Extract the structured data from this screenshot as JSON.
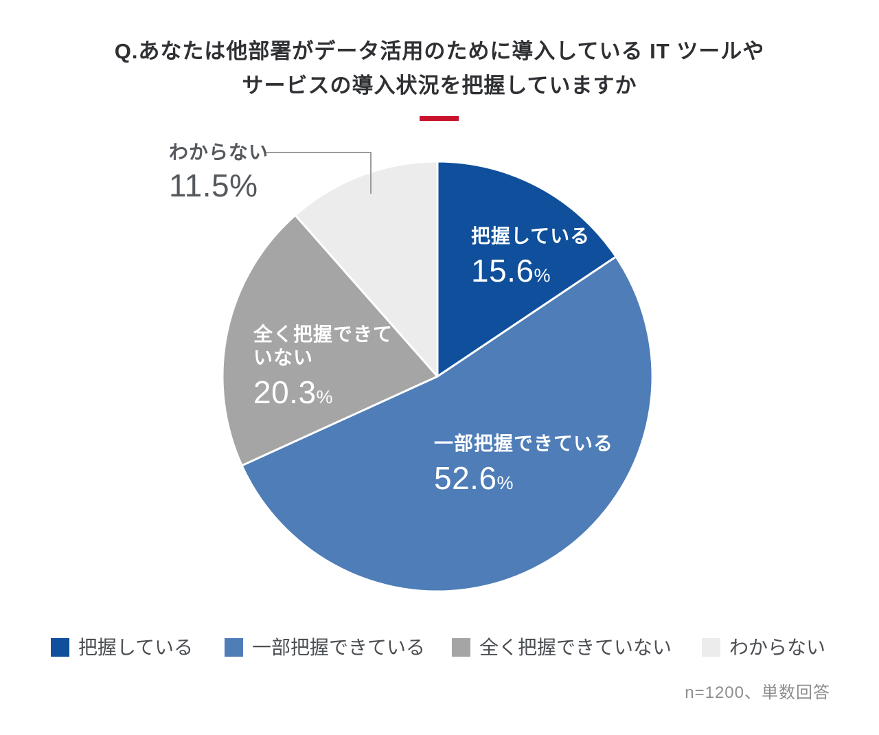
{
  "percent_sign": "%",
  "header": {
    "title_line1": "Q.あなたは他部署がデータ活用のために導入している IT ツールや",
    "title_line2": "サービスの導入状況を把握していますか",
    "accent_color": "#c9122b"
  },
  "chart_data": {
    "type": "pie",
    "title": "Q.あなたは他部署がデータ活用のために導入している IT ツールやサービスの導入状況を把握していますか",
    "start_angle_deg": 0,
    "direction": "clockwise",
    "total_percent": 100,
    "slice_separator_color": "#ffffff",
    "slices": [
      {
        "label": "把握している",
        "value": 15.6,
        "value_str": "15.6",
        "color": "#0f4f9b",
        "text_color": "#ffffff",
        "label_placement": "inside"
      },
      {
        "label": "一部把握できている",
        "value": 52.6,
        "value_str": "52.6",
        "color": "#4e7db8",
        "text_color": "#ffffff",
        "label_placement": "inside"
      },
      {
        "label": "全く把握できていない",
        "label_line1": "全く把握できて",
        "label_line2": "いない",
        "value": 20.3,
        "value_str": "20.3",
        "color": "#a5a5a5",
        "text_color": "#ffffff",
        "label_placement": "inside"
      },
      {
        "label": "わからない",
        "value": 11.5,
        "value_str": "11.5",
        "color": "#ececec",
        "text_color": "#55585c",
        "label_placement": "outside-callout"
      }
    ],
    "legend_position": "bottom",
    "note": "n=1200、単数回答"
  }
}
